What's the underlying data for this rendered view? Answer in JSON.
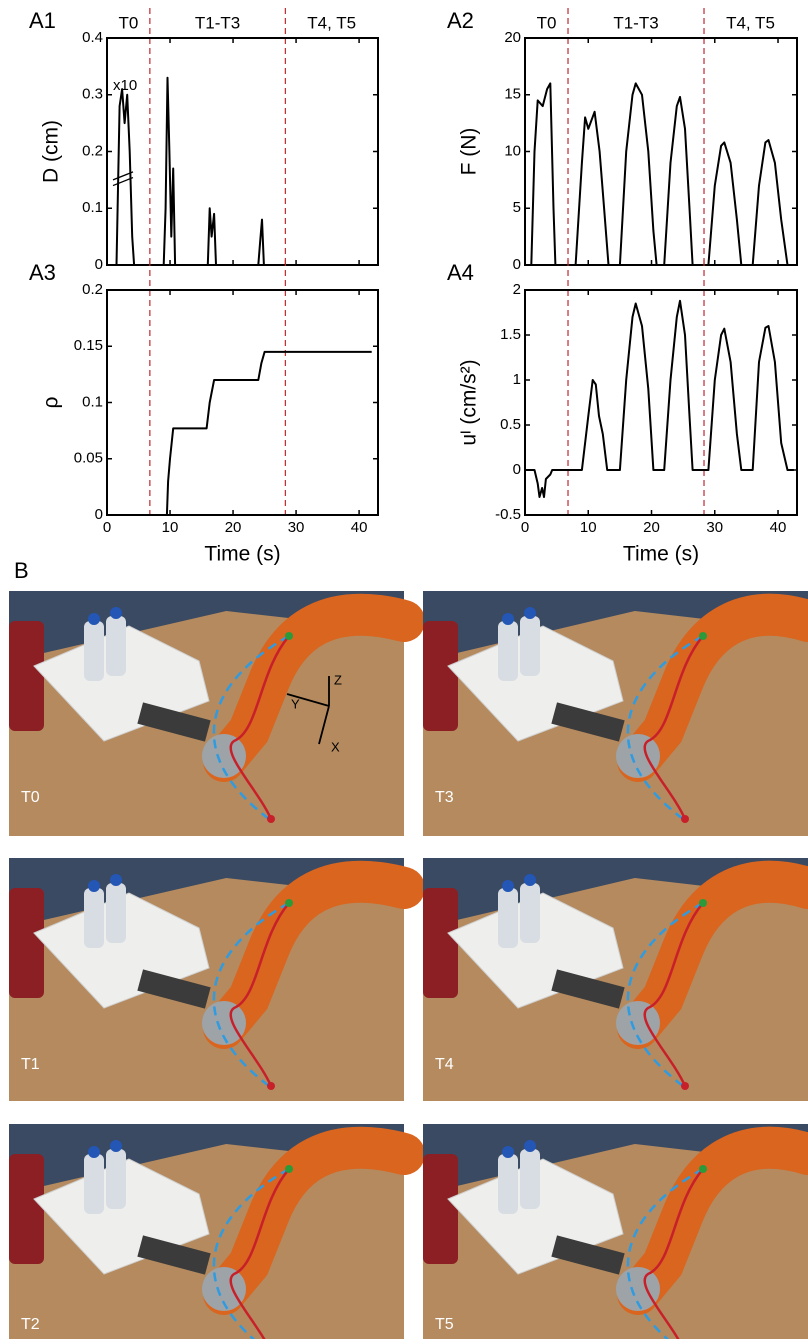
{
  "chart_data": [
    {
      "type": "line",
      "panel": "A1",
      "ylabel": "D (cm)",
      "annotation": "x10",
      "xlim": [
        0,
        43
      ],
      "xticks": [
        0,
        10,
        20,
        30,
        40
      ],
      "show_xtick_labels": false,
      "ylim": [
        0,
        0.4
      ],
      "yticks": [
        0,
        0.1,
        0.2,
        0.3,
        0.4
      ],
      "phase_labels": [
        "T0",
        "T1-T3",
        "T4, T5"
      ],
      "phase_bounds": [
        6.8,
        28.3
      ],
      "series": [
        {
          "color": "#000000",
          "x": [
            0,
            1.5,
            2,
            2.4,
            2.8,
            3.2,
            3.6,
            4,
            4.3,
            9,
            9.3,
            9.6,
            9.9,
            10.2,
            10.5,
            10.8,
            16,
            16.3,
            16.6,
            17,
            17.3,
            24,
            24.3,
            24.6,
            24.9,
            43
          ],
          "values": [
            0,
            0,
            0.28,
            0.31,
            0.25,
            0.3,
            0.2,
            0.05,
            0,
            0,
            0.1,
            0.33,
            0.2,
            0.05,
            0.17,
            0,
            0,
            0.1,
            0.05,
            0.09,
            0,
            0,
            0.04,
            0.08,
            0,
            0
          ]
        }
      ]
    },
    {
      "type": "line",
      "panel": "A2",
      "ylabel": "F (N)",
      "xlim": [
        0,
        43
      ],
      "xticks": [
        0,
        10,
        20,
        30,
        40
      ],
      "show_xtick_labels": false,
      "ylim": [
        0,
        20
      ],
      "yticks": [
        0,
        5,
        10,
        15,
        20
      ],
      "phase_labels": [
        "T0",
        "T1-T3",
        "T4, T5"
      ],
      "phase_bounds": [
        6.8,
        28.3
      ],
      "series": [
        {
          "color": "#000000",
          "x": [
            0,
            1,
            1.5,
            2,
            2.8,
            3.5,
            4,
            4.5,
            4.8,
            8,
            9,
            9.5,
            10,
            11,
            11.8,
            12.5,
            13.2,
            15,
            16,
            17,
            17.5,
            18.5,
            19.5,
            20.3,
            20.8,
            22,
            23,
            24,
            24.5,
            25.3,
            26,
            26.5,
            29,
            30,
            31,
            31.5,
            32.5,
            33.5,
            34.2,
            36,
            37,
            38,
            38.5,
            39.5,
            40.5,
            41.5,
            42
          ],
          "values": [
            0,
            0,
            10,
            14.5,
            14,
            15.5,
            16,
            5,
            0,
            0,
            9,
            13,
            12,
            13.5,
            10,
            5,
            0,
            0,
            10,
            15,
            16,
            15,
            10,
            3,
            0,
            0,
            9,
            14,
            14.8,
            12,
            5,
            0,
            0,
            7,
            10.5,
            10.8,
            9,
            4,
            0,
            0,
            7,
            10.8,
            11,
            9,
            4,
            0,
            0
          ]
        }
      ]
    },
    {
      "type": "line",
      "panel": "A3",
      "ylabel": "ρ",
      "xlabel": "Time (s)",
      "xlim": [
        0,
        43
      ],
      "xticks": [
        0,
        10,
        20,
        30,
        40
      ],
      "show_xtick_labels": true,
      "ylim": [
        0,
        0.2
      ],
      "yticks": [
        0,
        0.05,
        0.1,
        0.15,
        0.2
      ],
      "phase_bounds": [
        6.8,
        28.3
      ],
      "series": [
        {
          "color": "#000000",
          "x": [
            9.5,
            9.7,
            10,
            10.5,
            15.8,
            16.3,
            17,
            24,
            24.5,
            25,
            42
          ],
          "values": [
            0,
            0.03,
            0.05,
            0.077,
            0.077,
            0.1,
            0.12,
            0.12,
            0.135,
            0.145,
            0.145
          ]
        }
      ]
    },
    {
      "type": "line",
      "panel": "A4",
      "ylabel": "uᴵ (cm/s²)",
      "xlabel": "Time (s)",
      "xlim": [
        0,
        43
      ],
      "xticks": [
        0,
        10,
        20,
        30,
        40
      ],
      "show_xtick_labels": true,
      "ylim": [
        -0.5,
        2
      ],
      "yticks": [
        -0.5,
        0,
        0.5,
        1,
        1.5,
        2
      ],
      "phase_bounds": [
        6.8,
        28.3
      ],
      "series": [
        {
          "color": "#000000",
          "x": [
            0,
            1.5,
            2,
            2.3,
            2.7,
            3,
            3.3,
            4,
            4.3,
            9,
            10,
            10.7,
            11.2,
            11.7,
            12.3,
            13,
            15,
            16,
            17,
            17.5,
            18.5,
            19.5,
            20.3,
            22,
            23,
            24,
            24.5,
            25.3,
            26,
            26.5,
            29,
            30,
            31,
            31.5,
            32.5,
            33.5,
            34.2,
            36,
            37,
            38,
            38.5,
            39.5,
            40.5,
            41.5,
            42.5
          ],
          "values": [
            0,
            0,
            -0.15,
            -0.3,
            -0.2,
            -0.3,
            -0.1,
            -0.05,
            0,
            0,
            0.6,
            1,
            0.95,
            0.6,
            0.4,
            0,
            0,
            1,
            1.7,
            1.85,
            1.6,
            0.9,
            0,
            0,
            1,
            1.7,
            1.88,
            1.5,
            0.6,
            0,
            0,
            1,
            1.5,
            1.57,
            1.2,
            0.4,
            0,
            0,
            1.2,
            1.58,
            1.6,
            1.2,
            0.3,
            0,
            0
          ]
        }
      ]
    }
  ],
  "panel_b": {
    "label": "B",
    "frames": [
      "T0",
      "T3",
      "T1",
      "T4",
      "T2",
      "T5"
    ],
    "axes": [
      "X",
      "Y",
      "Z"
    ]
  }
}
